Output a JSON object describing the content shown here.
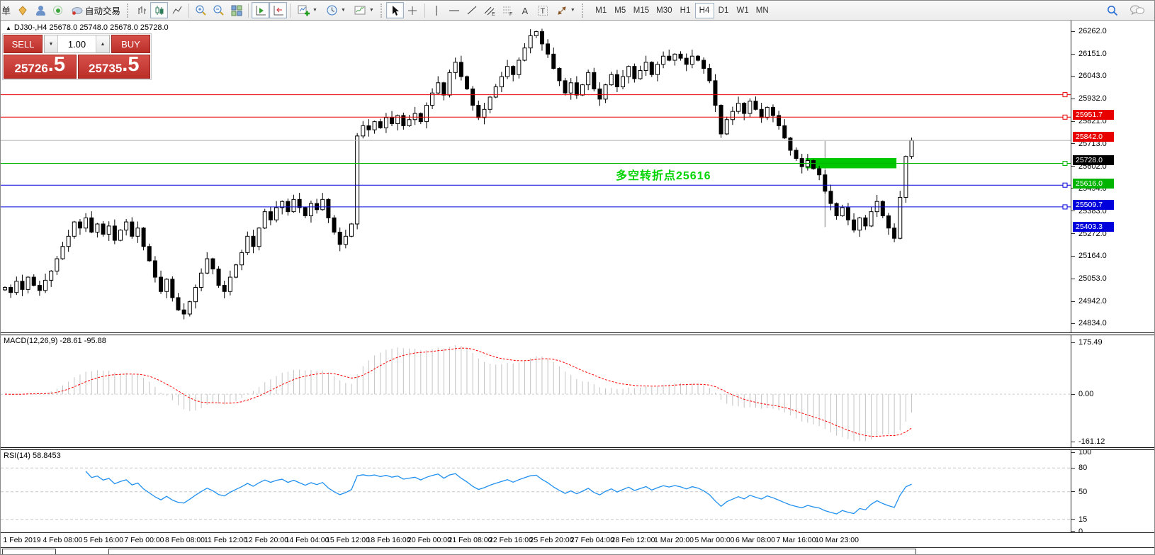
{
  "toolbar": {
    "new_order_label": "单",
    "autotrade_label": "自动交易",
    "icons": [
      "history-icon",
      "profile-icon",
      "signal-icon",
      "autotrade-icon",
      "bar-chart-icon",
      "candlestick-chart-icon",
      "line-chart-icon",
      "zoom-in-icon",
      "zoom-out-icon",
      "tile-windows-icon",
      "auto-scroll-icon",
      "chart-shift-icon",
      "new-chart-icon",
      "periods-clock-icon",
      "templates-icon",
      "cursor-icon",
      "crosshair-icon",
      "vertical-line-icon",
      "horizontal-line-icon",
      "trendline-icon",
      "equidistant-channel-icon",
      "fibonacci-icon",
      "text-icon",
      "text-label-icon",
      "arrows-icon",
      "search-icon",
      "chat-icon"
    ],
    "timeframes": [
      "M1",
      "M5",
      "M15",
      "M30",
      "H1",
      "H4",
      "D1",
      "W1",
      "MN"
    ],
    "active_timeframe": "H4"
  },
  "chart_header": {
    "symbol_title": "DJ30-,H4  25678.0 25748.0 25678.0 25728.0"
  },
  "trade_panel": {
    "sell_label": "SELL",
    "buy_label": "BUY",
    "volume": "1.00",
    "sell_price_main": "25726",
    "sell_price_frac": ".5",
    "buy_price_main": "25735",
    "buy_price_frac": ".5"
  },
  "annotation": {
    "text": "多空转折点25616",
    "color": "#00d400"
  },
  "levels": [
    {
      "price": 25951.7,
      "label": "25951.7",
      "color": "#e80000",
      "type": "resistance"
    },
    {
      "price": 25842.0,
      "label": "25842.0",
      "color": "#e80000",
      "type": "resistance"
    },
    {
      "price": 25728.0,
      "label": "25728.0",
      "color": "#000000",
      "type": "current-price"
    },
    {
      "price": 25616.0,
      "label": "25616.0",
      "color": "#00b400",
      "type": "pivot"
    },
    {
      "price": 25509.7,
      "label": "25509.7",
      "color": "#0000dc",
      "type": "support"
    },
    {
      "price": 25403.3,
      "label": "25403.3",
      "color": "#0000dc",
      "type": "support"
    }
  ],
  "green_zone": {
    "start_index": 139,
    "end_index": 154,
    "price_top": 25642,
    "price_bottom": 25592,
    "color": "#00c800"
  },
  "vertical_marker": {
    "index": 142,
    "price_top": 25725,
    "price_bottom": 25305,
    "color": "#808080"
  },
  "price_axis": {
    "tick_labels": [
      "26262.0",
      "26151.0",
      "26043.0",
      "25932.0",
      "25821.0",
      "25713.0",
      "25602.0",
      "25494.0",
      "25383.0",
      "25272.0",
      "25164.0",
      "25053.0",
      "24942.0",
      "24834.0"
    ],
    "tick_values": [
      26262,
      26151,
      26043,
      25932,
      25821,
      25713,
      25602,
      25494,
      25383,
      25272,
      25164,
      25053,
      24942,
      24834
    ]
  },
  "date_axis": [
    "1 Feb 2019",
    "4 Feb 08:00",
    "5 Feb 16:00",
    "7 Feb 00:00",
    "8 Feb 08:00",
    "11 Feb 12:00",
    "12 Feb 20:00",
    "14 Feb 04:00",
    "15 Feb 12:00",
    "18 Feb 16:00",
    "20 Feb 00:00",
    "21 Feb 08:00",
    "22 Feb 16:00",
    "25 Feb 20:00",
    "27 Feb 04:00",
    "28 Feb 12:00",
    "1 Mar 20:00",
    "5 Mar 00:00",
    "6 Mar 08:00",
    "7 Mar 16:00",
    "10 Mar 23:00"
  ],
  "macd": {
    "label": "MACD(12,26,9) -28.61 -95.88",
    "fast": 12,
    "slow": 26,
    "signal": 9,
    "current_macd": -28.61,
    "current_signal": -95.88,
    "tick_labels": [
      "175.49",
      "0.00",
      "-161.12"
    ],
    "tick_values": [
      175.49,
      0,
      -161.12
    ],
    "histogram_color": "#c3c3c3",
    "signal_color": "#ff0000"
  },
  "rsi": {
    "label": "RSI(14) 58.8453",
    "period": 14,
    "current": 58.8453,
    "tick_labels": [
      "100",
      "80",
      "50",
      "15",
      "0"
    ],
    "tick_values": [
      100,
      80,
      50,
      15,
      0
    ],
    "dashed_levels": [
      80,
      50,
      15
    ],
    "line_color": "#2090f0"
  },
  "chart_data": {
    "type": "candlestick",
    "symbol": "DJ30-",
    "timeframe": "H4",
    "title": "DJ30-,H4",
    "ylim": [
      24790,
      26314
    ],
    "closes": [
      25010,
      24985,
      25040,
      25000,
      25060,
      25020,
      24995,
      25045,
      25090,
      25150,
      25210,
      25260,
      25330,
      25300,
      25350,
      25280,
      25320,
      25270,
      25310,
      25240,
      25290,
      25330,
      25260,
      25300,
      25210,
      25140,
      25060,
      24990,
      25050,
      24960,
      24900,
      24880,
      24940,
      25010,
      25080,
      25150,
      25100,
      25020,
      24990,
      25060,
      25120,
      25180,
      25260,
      25210,
      25300,
      25380,
      25340,
      25400,
      25430,
      25380,
      25440,
      25400,
      25360,
      25420,
      25390,
      25440,
      25350,
      25280,
      25220,
      25260,
      25320,
      25750,
      25800,
      25780,
      25820,
      25790,
      25840,
      25810,
      25850,
      25800,
      25830,
      25860,
      25820,
      25900,
      25960,
      26010,
      25950,
      26060,
      26110,
      26040,
      25980,
      25900,
      25840,
      25880,
      25940,
      25990,
      26040,
      26090,
      26050,
      26120,
      26180,
      26240,
      26260,
      26200,
      26150,
      26080,
      26020,
      25960,
      26010,
      25950,
      26000,
      26060,
      25980,
      25930,
      26000,
      26050,
      25990,
      26040,
      26090,
      26030,
      26070,
      26110,
      26050,
      26100,
      26140,
      26120,
      26150,
      26130,
      26100,
      26140,
      26120,
      26080,
      26020,
      25900,
      25760,
      25830,
      25870,
      25910,
      25860,
      25920,
      25880,
      25840,
      25890,
      25850,
      25800,
      25740,
      25680,
      25640,
      25600,
      25630,
      25590,
      25560,
      25480,
      25420,
      25360,
      25400,
      25340,
      25290,
      25350,
      25310,
      25380,
      25430,
      25360,
      25300,
      25250,
      25450,
      25650,
      25728
    ]
  }
}
